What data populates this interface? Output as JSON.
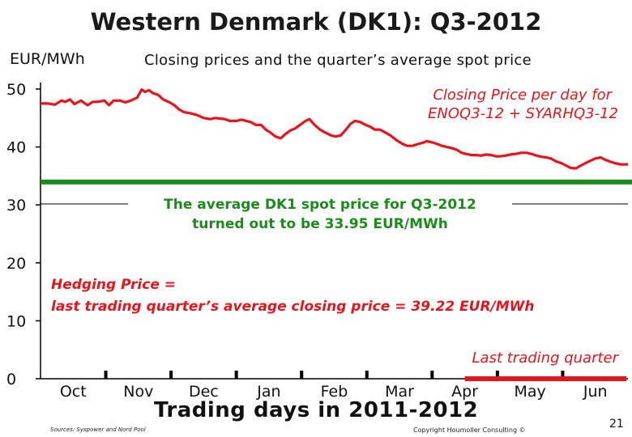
{
  "title": "Western Denmark (DK1): Q3-2012",
  "unit": "EUR/MWh",
  "subtitle": "Closing prices and the quarter’s average spot price",
  "xlabel": "Trading days in 2011-2012",
  "source": "Sources: Syspower and Nord Pool",
  "copyright": "Copyright Houmoller Consulting ©",
  "page_number": "21",
  "colors": {
    "closing": "#e8141c",
    "spot": "#1a8c1a",
    "axis": "#000000",
    "text": "#111111"
  },
  "chart_data": {
    "type": "line",
    "ylim": [
      0,
      50
    ],
    "yticks": [
      "0",
      "10",
      "20",
      "30",
      "40",
      "50"
    ],
    "months": [
      "Oct",
      "Nov",
      "Dec",
      "Jan",
      "Feb",
      "Mar",
      "Apr",
      "May",
      "Jun"
    ],
    "grid": false,
    "series": [
      {
        "name": "Closing Price per day for ENOQ3-12 + SYARHQ3-12",
        "color": "#e8141c",
        "x": [
          0.0,
          0.12,
          0.22,
          0.32,
          0.38,
          0.45,
          0.52,
          0.62,
          0.72,
          0.8,
          0.88,
          0.98,
          1.05,
          1.12,
          1.22,
          1.3,
          1.38,
          1.48,
          1.55,
          1.6,
          1.66,
          1.72,
          1.8,
          1.88,
          1.96,
          2.05,
          2.12,
          2.2,
          2.3,
          2.4,
          2.5,
          2.6,
          2.68,
          2.75,
          2.82,
          2.9,
          3.0,
          3.08,
          3.15,
          3.22,
          3.3,
          3.38,
          3.45,
          3.52,
          3.6,
          3.68,
          3.75,
          3.82,
          3.9,
          4.0,
          4.06,
          4.12,
          4.2,
          4.28,
          4.36,
          4.45,
          4.52,
          4.6,
          4.68,
          4.75,
          4.82,
          4.9,
          4.98,
          5.05,
          5.12,
          5.2,
          5.28,
          5.36,
          5.45,
          5.55,
          5.62,
          5.7,
          5.78,
          5.85,
          5.92,
          6.0,
          6.08,
          6.15,
          6.22,
          6.3,
          6.38,
          6.45,
          6.52,
          6.6,
          6.68,
          6.75,
          6.82,
          6.9,
          6.98,
          7.05,
          7.12,
          7.2,
          7.28,
          7.36,
          7.45,
          7.52,
          7.6,
          7.68,
          7.75,
          7.82,
          7.9,
          7.98,
          8.05,
          8.12,
          8.2,
          8.28,
          8.35,
          8.42,
          8.5,
          8.58,
          8.65,
          8.72,
          8.8,
          8.88,
          8.95,
          9.0
        ],
        "values": [
          47.5,
          47.5,
          47.3,
          48.0,
          47.8,
          48.2,
          47.4,
          48.0,
          47.2,
          47.8,
          47.8,
          48.0,
          47.2,
          48.0,
          48.0,
          47.7,
          48.0,
          48.5,
          49.9,
          49.5,
          49.8,
          49.3,
          49.0,
          48.2,
          47.8,
          47.2,
          46.5,
          46.0,
          45.8,
          45.5,
          45.0,
          44.8,
          45.0,
          44.9,
          44.8,
          44.5,
          44.5,
          44.7,
          44.5,
          44.3,
          43.8,
          43.8,
          43.0,
          42.5,
          41.8,
          41.5,
          42.2,
          42.8,
          43.2,
          44.0,
          44.5,
          44.8,
          43.8,
          43.0,
          42.5,
          42.0,
          41.8,
          42.0,
          43.0,
          44.0,
          44.5,
          44.3,
          43.8,
          43.5,
          43.0,
          43.0,
          42.5,
          42.0,
          41.2,
          40.5,
          40.2,
          40.2,
          40.5,
          40.7,
          41.0,
          40.8,
          40.5,
          40.2,
          40.0,
          39.8,
          39.5,
          39.0,
          38.8,
          38.6,
          38.6,
          38.5,
          38.7,
          38.6,
          38.4,
          38.4,
          38.5,
          38.7,
          38.8,
          39.0,
          39.0,
          38.8,
          38.5,
          38.3,
          38.2,
          38.0,
          37.5,
          37.2,
          36.8,
          36.4,
          36.3,
          36.8,
          37.2,
          37.6,
          38.0,
          38.2,
          37.8,
          37.5,
          37.2,
          37.0,
          37.0,
          37.0
        ]
      },
      {
        "name": "The average DK1 spot price for Q3-2012 turned out to be 33.95 EUR/MWh",
        "color": "#1a8c1a",
        "value": 33.95
      }
    ],
    "annotations": {
      "closing_label_line1": "Closing Price per day for",
      "closing_label_line2": "ENOQ3-12 + SYARHQ3-12",
      "spot_label_line1": "The average DK1 spot price for Q3-2012",
      "spot_label_line2": "turned out to be 33.95 EUR/MWh",
      "hedge_line1": "Hedging Price =",
      "hedge_line2": "last trading quarter’s average closing price  =  39.22 EUR/MWh",
      "last_quarter": "Last trading quarter",
      "last_quarter_range": [
        6.5,
        9.0
      ]
    }
  }
}
